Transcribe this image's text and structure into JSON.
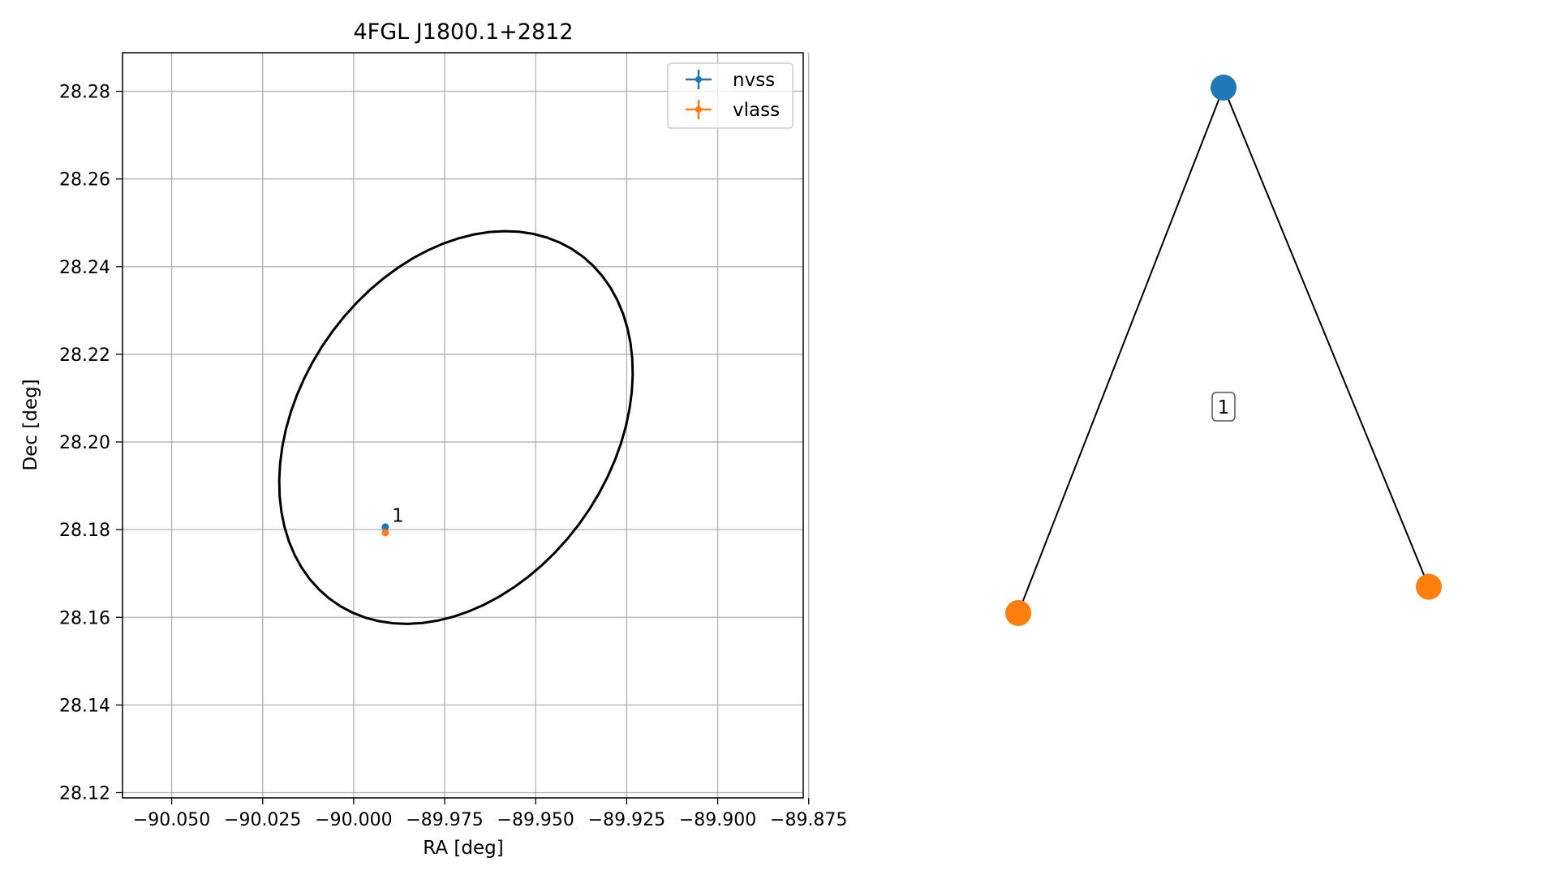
{
  "chart_data": [
    {
      "type": "scatter",
      "title": "4FGL J1800.1+2812",
      "xlabel": "RA [deg]",
      "ylabel": "Dec [deg]",
      "xlim": [
        -90.0635,
        -89.8765
      ],
      "ylim": [
        28.1188,
        28.2888
      ],
      "xticks": [
        -90.05,
        -90.025,
        -90.0,
        -89.975,
        -89.95,
        -89.925,
        -89.9,
        -89.875
      ],
      "xtick_labels": [
        "−90.050",
        "−90.025",
        "−90.000",
        "−89.975",
        "−89.950",
        "−89.925",
        "−89.900",
        "−89.875"
      ],
      "yticks": [
        28.12,
        28.14,
        28.16,
        28.18,
        28.2,
        28.22,
        28.24,
        28.26,
        28.28
      ],
      "ytick_labels": [
        "28.12",
        "28.14",
        "28.16",
        "28.18",
        "28.20",
        "28.22",
        "28.24",
        "28.26",
        "28.28"
      ],
      "grid": true,
      "legend_position": "upper-right",
      "series": [
        {
          "name": "nvss",
          "color": "#1f77b4",
          "x": [
            -89.9913
          ],
          "y": [
            28.1806
          ]
        },
        {
          "name": "vlass",
          "color": "#ff7f0e",
          "x": [
            -89.9913
          ],
          "y": [
            28.1793
          ]
        }
      ],
      "annotations": [
        {
          "text": "1",
          "x": -89.9895,
          "y": 28.1818
        }
      ],
      "ellipse": {
        "center": [
          -89.9719,
          28.2033
        ],
        "semi_major": 0.0531,
        "semi_minor": 0.0393,
        "angle_deg": 37,
        "color": "#000000"
      }
    },
    {
      "type": "network",
      "nodes": [
        {
          "id": "nvss",
          "color": "#1f77b4",
          "x": 0.5,
          "y": 1.0
        },
        {
          "id": "vlass-left",
          "color": "#ff7f0e",
          "x": 0.0,
          "y": 0.0
        },
        {
          "id": "vlass-right",
          "color": "#ff7f0e",
          "x": 1.0,
          "y": 0.05
        }
      ],
      "edges": [
        [
          "nvss",
          "vlass-left"
        ],
        [
          "nvss",
          "vlass-right"
        ]
      ],
      "label": "1"
    }
  ]
}
